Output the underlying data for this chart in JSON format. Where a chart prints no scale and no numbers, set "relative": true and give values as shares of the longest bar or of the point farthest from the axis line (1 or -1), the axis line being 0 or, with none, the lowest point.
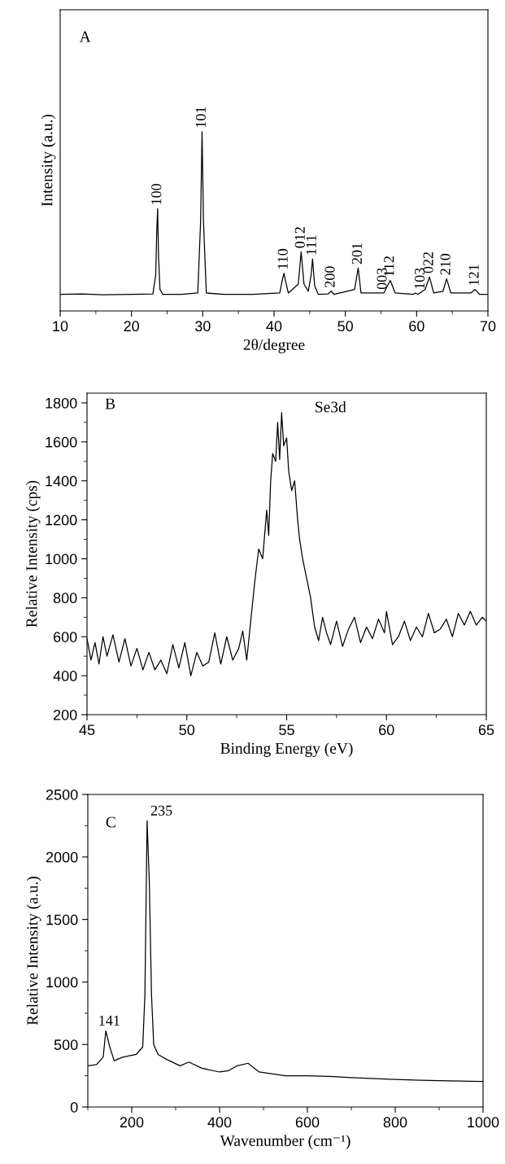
{
  "chart_data": [
    {
      "type": "line",
      "relative": true,
      "xlabel": "2θ/degree",
      "ylabel": "Intensity (a.u.)",
      "tick_labels": "x",
      "xlim": [
        10,
        70
      ],
      "xticks": [
        10,
        20,
        30,
        40,
        50,
        60,
        70
      ],
      "grid": false,
      "legend": false,
      "x": [
        10,
        13,
        16,
        20,
        23.0,
        23.4,
        23.55,
        23.67,
        23.8,
        24.0,
        24.4,
        27,
        29.3,
        29.7,
        29.9,
        30.1,
        30.5,
        33,
        37,
        40.8,
        41.2,
        41.4,
        41.6,
        42.0,
        43.4,
        43.8,
        44.2,
        44.8,
        45.2,
        45.4,
        45.7,
        46.2,
        47.6,
        48.0,
        48.4,
        51.3,
        51.8,
        52.2,
        55.4,
        56.3,
        57.0,
        59.5,
        59.8,
        60.2,
        61.2,
        61.8,
        62.4,
        63.7,
        64.2,
        64.8,
        67.6,
        68.2,
        68.8,
        70
      ],
      "series": [
        {
          "color": "#000000",
          "values": [
            0.093,
            0.095,
            0.09,
            0.093,
            0.095,
            0.2,
            0.45,
            0.57,
            0.3,
            0.12,
            0.093,
            0.092,
            0.1,
            0.5,
            1.0,
            0.5,
            0.1,
            0.092,
            0.093,
            0.1,
            0.18,
            0.21,
            0.17,
            0.1,
            0.15,
            0.33,
            0.15,
            0.11,
            0.2,
            0.29,
            0.14,
            0.093,
            0.095,
            0.11,
            0.093,
            0.12,
            0.24,
            0.1,
            0.1,
            0.17,
            0.1,
            0.093,
            0.1,
            0.093,
            0.12,
            0.19,
            0.1,
            0.11,
            0.18,
            0.1,
            0.1,
            0.12,
            0.093,
            0.093
          ]
        }
      ],
      "annotations": [
        "A",
        {
          "text": "100",
          "x": 23.67,
          "y": 0.57
        },
        {
          "text": "101",
          "x": 29.9,
          "y": 1.0
        },
        {
          "text": "110",
          "x": 41.4,
          "y": 0.21
        },
        {
          "text": "012",
          "x": 43.8,
          "y": 0.33
        },
        {
          "text": "111",
          "x": 45.4,
          "y": 0.29
        },
        {
          "text": "200",
          "x": 48.0,
          "y": 0.11
        },
        {
          "text": "201",
          "x": 51.8,
          "y": 0.24
        },
        {
          "text": "003",
          "x": 55.3,
          "y": 0.1
        },
        {
          "text": "112",
          "x": 56.3,
          "y": 0.17
        },
        {
          "text": "103",
          "x": 60.6,
          "y": 0.1
        },
        {
          "text": "022",
          "x": 61.8,
          "y": 0.19
        },
        {
          "text": "210",
          "x": 64.2,
          "y": 0.18
        },
        {
          "text": "121",
          "x": 68.2,
          "y": 0.12
        }
      ]
    },
    {
      "type": "line",
      "xlabel": "Binding Energy (eV)",
      "ylabel": "Relative Intensity (cps)",
      "xlim": [
        45,
        65
      ],
      "ylim": [
        200,
        1850
      ],
      "xticks": [
        45,
        50,
        55,
        60,
        65
      ],
      "yticks": [
        200,
        400,
        600,
        800,
        1000,
        1200,
        1400,
        1600,
        1800
      ],
      "grid": false,
      "legend": false,
      "x": [
        45.0,
        45.2,
        45.4,
        45.6,
        45.8,
        46.0,
        46.3,
        46.6,
        46.9,
        47.2,
        47.5,
        47.8,
        48.1,
        48.4,
        48.7,
        49.0,
        49.3,
        49.6,
        49.9,
        50.2,
        50.5,
        50.8,
        51.1,
        51.4,
        51.7,
        52.0,
        52.3,
        52.6,
        52.8,
        53.0,
        53.2,
        53.4,
        53.6,
        53.8,
        54.0,
        54.1,
        54.2,
        54.3,
        54.45,
        54.55,
        54.65,
        54.75,
        54.85,
        55.0,
        55.1,
        55.25,
        55.4,
        55.55,
        55.65,
        55.8,
        56.0,
        56.2,
        56.4,
        56.6,
        56.8,
        57.0,
        57.2,
        57.5,
        57.8,
        58.1,
        58.4,
        58.7,
        59.0,
        59.3,
        59.6,
        59.9,
        60.0,
        60.3,
        60.6,
        60.9,
        61.2,
        61.5,
        61.8,
        62.1,
        62.4,
        62.7,
        63.0,
        63.3,
        63.6,
        63.9,
        64.2,
        64.5,
        64.8,
        65.0
      ],
      "series": [
        {
          "color": "#000000",
          "values": [
            590,
            480,
            570,
            460,
            600,
            500,
            610,
            470,
            590,
            450,
            540,
            430,
            520,
            430,
            480,
            410,
            560,
            440,
            570,
            400,
            520,
            450,
            470,
            620,
            460,
            600,
            480,
            540,
            630,
            480,
            680,
            880,
            1050,
            1000,
            1250,
            1120,
            1400,
            1540,
            1500,
            1700,
            1510,
            1750,
            1580,
            1620,
            1450,
            1350,
            1400,
            1200,
            1100,
            1000,
            900,
            800,
            650,
            580,
            700,
            620,
            560,
            680,
            550,
            640,
            700,
            570,
            650,
            590,
            690,
            620,
            730,
            560,
            600,
            680,
            580,
            650,
            600,
            720,
            620,
            640,
            690,
            600,
            720,
            660,
            730,
            660,
            700,
            680
          ]
        }
      ],
      "annotations": [
        "B",
        "Se3d"
      ]
    },
    {
      "type": "line",
      "xlabel": "Wavenumber (cm⁻¹)",
      "ylabel": "Relative Intensity (a.u.)",
      "xlim": [
        100,
        1000
      ],
      "ylim": [
        0,
        2500
      ],
      "xticks": [
        200,
        400,
        600,
        800,
        1000
      ],
      "yticks": [
        0,
        500,
        1000,
        1500,
        2000,
        2500
      ],
      "grid": false,
      "legend": false,
      "x": [
        100,
        120,
        135,
        141,
        150,
        160,
        180,
        210,
        225,
        230,
        235,
        240,
        245,
        250,
        260,
        280,
        310,
        330,
        360,
        400,
        420,
        440,
        465,
        490,
        550,
        600,
        650,
        700,
        800,
        900,
        1000
      ],
      "series": [
        {
          "color": "#000000",
          "values": [
            330,
            340,
            400,
            610,
            480,
            370,
            400,
            420,
            480,
            900,
            2290,
            1800,
            900,
            500,
            420,
            380,
            330,
            360,
            310,
            280,
            290,
            330,
            350,
            280,
            250,
            250,
            245,
            235,
            220,
            210,
            205
          ]
        }
      ],
      "annotations": [
        "C",
        {
          "text": "141",
          "x": 141,
          "y": 610
        },
        {
          "text": "235",
          "x": 235,
          "y": 2290
        }
      ]
    }
  ]
}
